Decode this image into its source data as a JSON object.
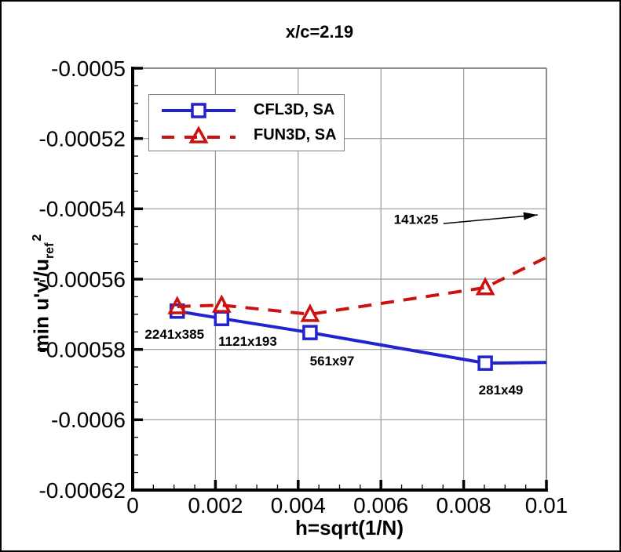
{
  "chart_data": {
    "type": "line",
    "title": "x/c=2.19",
    "x_axis": {
      "label": "h=sqrt(1/N)",
      "min": 0,
      "max": 0.01,
      "major_ticks": [
        0,
        0.002,
        0.004,
        0.006,
        0.008,
        0.01
      ],
      "tick_labels": [
        "0",
        "0.002",
        "0.004",
        "0.006",
        "0.008",
        "0.01"
      ],
      "minor_step": 0.0005
    },
    "y_axis": {
      "label_main": "min u'v'/u",
      "label_sub": "ref",
      "label_sup": "2",
      "min": -0.00062,
      "max": -0.0005,
      "major_ticks": [
        -0.0005,
        -0.00052,
        -0.00054,
        -0.00056,
        -0.00058,
        -0.0006,
        -0.00062
      ],
      "tick_labels": [
        "-0.0005",
        "-0.00052",
        "-0.00054",
        "-0.00056",
        "-0.00058",
        "-0.0006",
        "-0.00062"
      ],
      "minor_step": 5e-06
    },
    "grid": true,
    "legend_position": "upper-left-inside",
    "series": [
      {
        "name": "CFL3D, SA",
        "color": "#2323cd",
        "line_style": "solid",
        "marker": "square",
        "marker_count": 4,
        "x": [
          0.001077,
          0.00215,
          0.004287,
          0.008522,
          0.01
        ],
        "y": [
          -0.0005691,
          -0.0005712,
          -0.0005752,
          -0.0005839,
          -0.0005837
        ]
      },
      {
        "name": "FUN3D, SA",
        "color": "#cc1111",
        "line_style": "dashed",
        "marker": "triangle",
        "marker_count": 4,
        "x": [
          0.001077,
          0.00215,
          0.004287,
          0.008522,
          0.01
        ],
        "y": [
          -0.0005678,
          -0.0005674,
          -0.00057,
          -0.0005624,
          -0.0005538
        ]
      }
    ],
    "annotations": [
      {
        "text": "2241x385",
        "x": 0.00101,
        "y": -0.0005756
      },
      {
        "text": "1121x193",
        "x": 0.00278,
        "y": -0.0005776
      },
      {
        "text": "561x97",
        "x": 0.00482,
        "y": -0.0005832
      },
      {
        "text": "281x49",
        "x": 0.0089,
        "y": -0.0005915
      },
      {
        "text": "141x25",
        "x": 0.00685,
        "y": -0.000543,
        "arrow": {
          "x1": 0.00751,
          "y1": -0.0005442,
          "x2": 0.00979,
          "y2": -0.0005417
        }
      }
    ],
    "colors": {
      "axis": "#000000",
      "grid": "#999999",
      "box": "#666666",
      "background": "#ffffff",
      "text": "#000000"
    }
  }
}
